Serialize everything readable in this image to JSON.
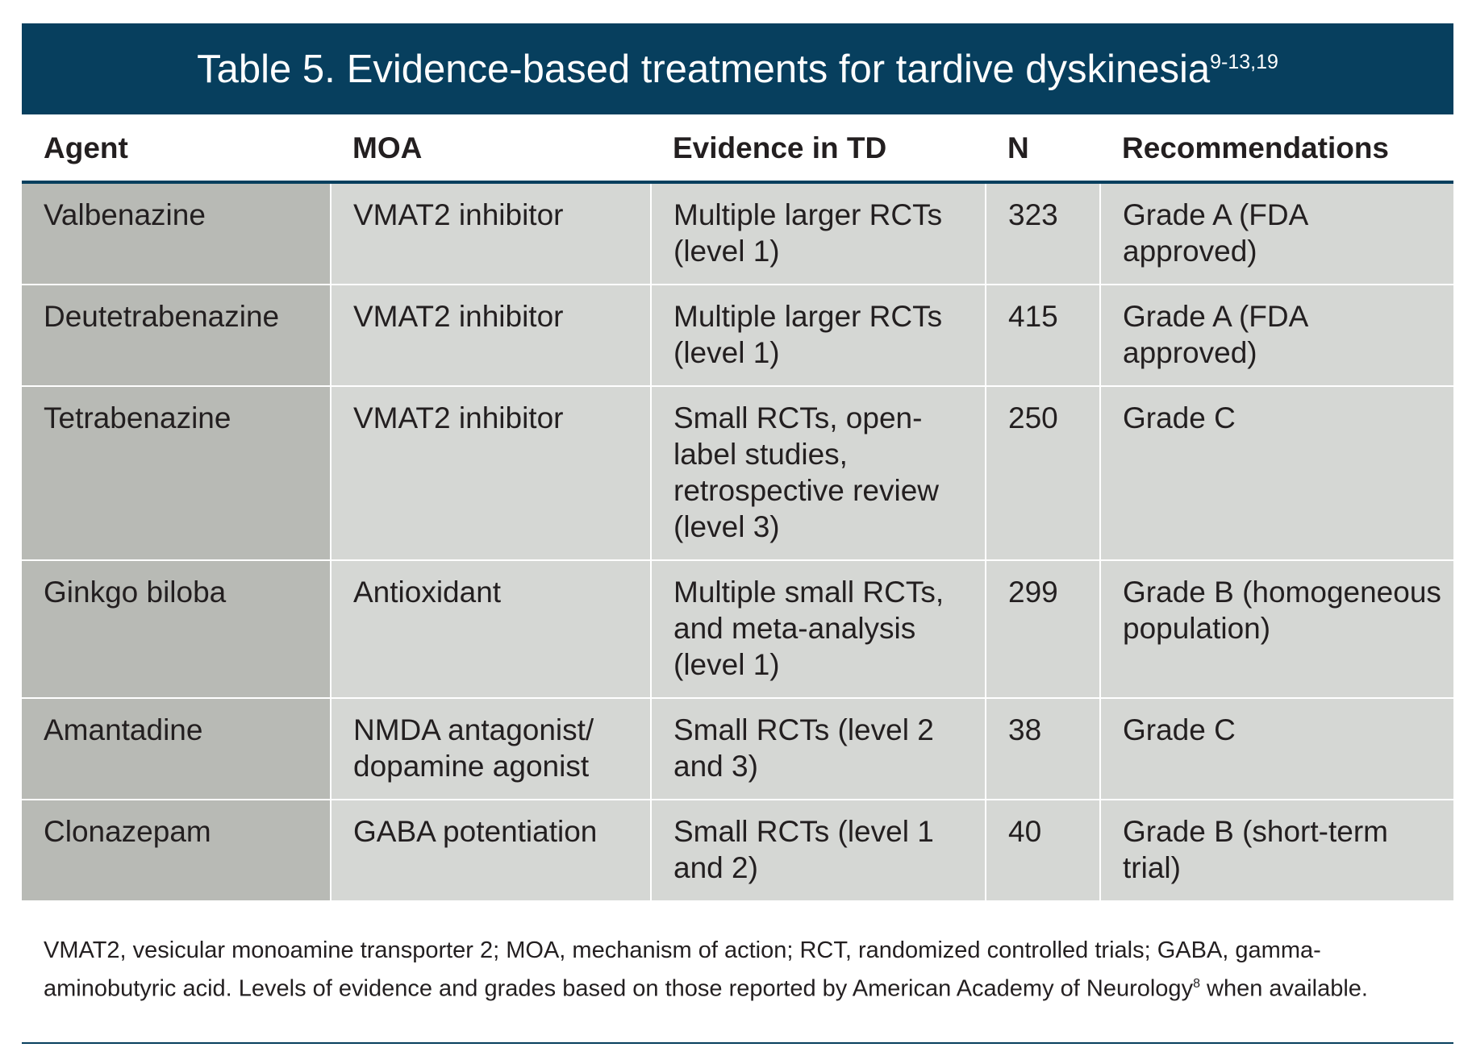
{
  "title": {
    "label": "Table 5.",
    "text": "Evidence-based treatments for tardive dyskinesia",
    "refs": "9-13,19"
  },
  "colors": {
    "band": "#073f5e",
    "agent_column": "#b8bab5",
    "cells": "#d5d7d4"
  },
  "columns": [
    "Agent",
    "MOA",
    "Evidence in TD",
    "N",
    "Recommendations"
  ],
  "rows": [
    {
      "agent": "Valbenazine",
      "moa": "VMAT2 inhibitor",
      "evidence": "Multiple larger RCTs (level 1)",
      "n": "323",
      "rec": "Grade A (FDA approved)"
    },
    {
      "agent": "Deutetrabenazine",
      "moa": "VMAT2 inhibitor",
      "evidence": "Multiple larger RCTs (level 1)",
      "n": "415",
      "rec": "Grade A (FDA approved)"
    },
    {
      "agent": "Tetrabenazine",
      "moa": "VMAT2 inhibitor",
      "evidence": "Small RCTs, open-label studies, retrospective review (level 3)",
      "n": "250",
      "rec": "Grade C"
    },
    {
      "agent": "Ginkgo biloba",
      "moa": "Antioxidant",
      "evidence": "Multiple small RCTs, and meta-analysis (level 1)",
      "n": "299",
      "rec": "Grade B (homogeneous population)"
    },
    {
      "agent": "Amantadine",
      "moa": "NMDA antagonist/ dopamine agonist",
      "evidence": "Small RCTs (level 2 and 3)",
      "n": "38",
      "rec": "Grade C"
    },
    {
      "agent": "Clonazepam",
      "moa": "GABA potentiation",
      "evidence": "Small RCTs (level 1 and 2)",
      "n": "40",
      "rec": "Grade B (short-term trial)"
    }
  ],
  "footnote": {
    "text": "VMAT2, vesicular monoamine transporter 2; MOA, mechanism of action; RCT, randomized controlled trials; GABA, gamma-aminobutyric acid. Levels of evidence and grades based on those reported by American Academy of Neurology",
    "ref": "8",
    "tail": " when available."
  }
}
